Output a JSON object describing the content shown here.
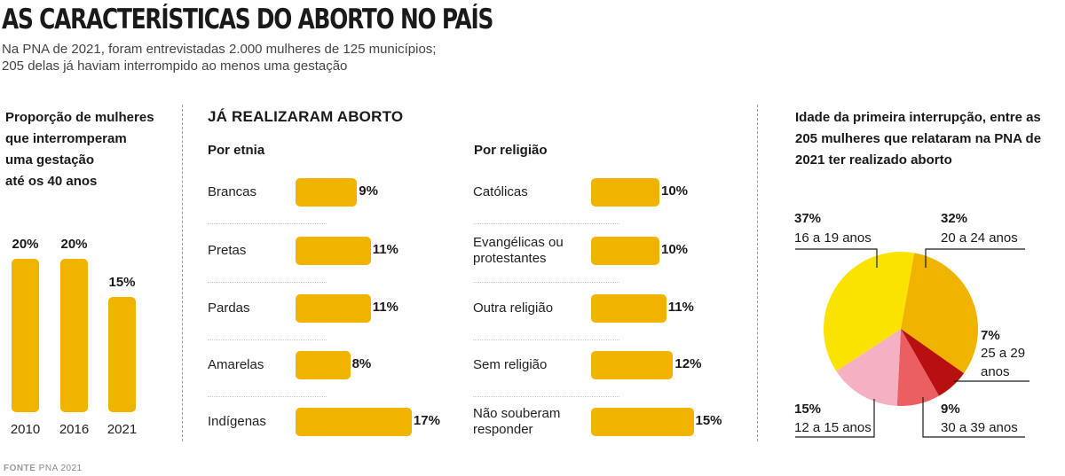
{
  "header": {
    "title": "AS CARACTERÍSTICAS DO ABORTO NO PAÍS",
    "subtitle_line1": "Na PNA de 2021, foram entrevistadas 2.000 mulheres de 125 municípios;",
    "subtitle_line2": "205 delas já haviam interrompido ao menos uma gestação"
  },
  "left_panel": {
    "heading_lines": [
      "Proporção de mulheres",
      "que interromperam",
      "uma gestação",
      "até os 40 anos"
    ]
  },
  "middle_panel": {
    "heading": "JÁ REALIZARAM ABORTO",
    "ethnicity_heading": "Por etnia",
    "religion_heading": "Por religião"
  },
  "right_panel": {
    "heading_lines": [
      "Idade da primeira interrupção, entre as",
      "205 mulheres que relataram na PNA de",
      "2021 ter realizado aborto"
    ]
  },
  "footer": {
    "source_label": "FONTE",
    "source_text": "PNA 2021"
  },
  "chart_data": [
    {
      "type": "bar",
      "categories": [
        "2010",
        "2016",
        "2021"
      ],
      "values": [
        20,
        20,
        15
      ],
      "data_labels": [
        "20%",
        "20%",
        "15%"
      ],
      "ylim": [
        0,
        20
      ],
      "color": "#f0b400"
    },
    {
      "type": "bar",
      "orientation": "horizontal",
      "categories": [
        "Brancas",
        "Pretas",
        "Pardas",
        "Amarelas",
        "Indígenas"
      ],
      "values": [
        9,
        11,
        11,
        8,
        17
      ],
      "data_labels": [
        "9%",
        "11%",
        "11%",
        "8%",
        "17%"
      ],
      "color": "#f0b400"
    },
    {
      "type": "bar",
      "orientation": "horizontal",
      "categories": [
        "Católicas",
        "Evangélicas ou protestantes",
        "Outra religião",
        "Sem religião",
        "Não souberam responder"
      ],
      "category_lines": [
        [
          "Católicas"
        ],
        [
          "Evangélicas ou",
          "protestantes"
        ],
        [
          "Outra religião"
        ],
        [
          "Sem religião"
        ],
        [
          "Não souberam",
          "responder"
        ]
      ],
      "values": [
        10,
        10,
        11,
        12,
        15
      ],
      "data_labels": [
        "10%",
        "10%",
        "11%",
        "12%",
        "15%"
      ],
      "color": "#f0b400"
    },
    {
      "type": "pie",
      "categories": [
        "20 a 24 anos",
        "25 a 29 anos",
        "30 a 39 anos",
        "12 a 15 anos",
        "16 a 19 anos"
      ],
      "values": [
        32,
        7,
        9,
        15,
        37
      ],
      "data_labels": [
        "32%",
        "7%",
        "9%",
        "15%",
        "37%"
      ],
      "colors": [
        "#f0b400",
        "#b81010",
        "#ec5f60",
        "#f5b1c1",
        "#fbe300"
      ]
    }
  ]
}
